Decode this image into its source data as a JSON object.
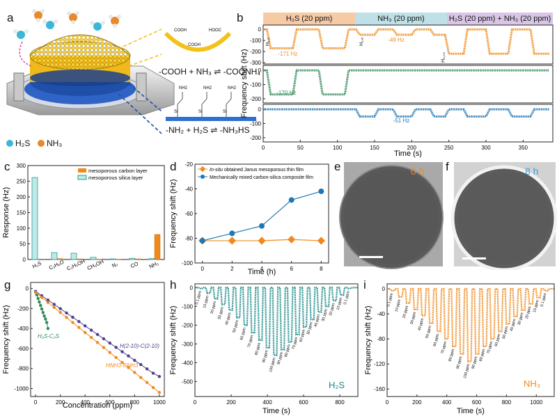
{
  "panels": {
    "a": {
      "label": "a",
      "eq1": "-COOH + NH₃ ⇌ -COONH₄",
      "eq2": "-NH₂ + H₂S ⇌ -NH₃HS",
      "legend_h2s": "H₂S",
      "legend_nh3": "NH₃",
      "cooh": "COOH",
      "hooc": "HOOC",
      "nh2": "NH₂",
      "si": "Si",
      "colors": {
        "h2s_ball": "#3cb7d6",
        "nh3_ball": "#e8892b",
        "film": "#f2c21b",
        "silica": "#1f4fa8"
      }
    },
    "b": {
      "label": "b",
      "headers": [
        "H₂S (20 ppm)",
        "NH₃ (20 ppm)",
        "H₂S (20 ppm) + NH₃ (20 ppm)"
      ],
      "header_colors": [
        "#f7caa6",
        "#bfe0e6",
        "#d9c6e6"
      ],
      "ylabel": "Frequency shift (Hz)",
      "xlabel": "Time (s)",
      "xticks": [
        "0",
        "50",
        "100",
        "150",
        "200",
        "250",
        "300",
        "350"
      ],
      "top_yticks": [
        "0",
        "-100",
        "-200",
        "-300"
      ],
      "mid_yticks": [
        "0",
        "-100",
        "-200"
      ],
      "bot_yticks": [
        "0",
        "-100",
        "-200"
      ],
      "ann_top": [
        "-171 Hz",
        "-49 Hz"
      ],
      "ann_mid": "-170 Hz",
      "ann_bot": "-51 Hz",
      "h_labels": [
        "H₁,₅",
        "H₁,₆",
        "H₂,₁₀"
      ],
      "colors": {
        "orange": "#ef8a1c",
        "green": "#2e8b57",
        "blue": "#1f77b4"
      }
    },
    "c": {
      "label": "c",
      "ylabel": "Response (Hz)",
      "legend": [
        "mesoporous carbon layer",
        "mesoporous silica layer"
      ],
      "yticks": [
        "0",
        "50",
        "100",
        "150",
        "200",
        "250",
        "300"
      ]
    },
    "d": {
      "label": "d",
      "ylabel": "Frequency shift (Hz)",
      "xlabel": "Time (h)",
      "legend": [
        "in-situ obtained Janus mesoporous thin film",
        "Mechanically mixed carbon-silica composite film"
      ],
      "legend_italic_prefix": "In-situ",
      "legend_rest": " obtained Janus mesoporous thin film",
      "yticks": [
        "-20",
        "-40",
        "-60",
        "-80",
        "-100"
      ],
      "xticks": [
        "0",
        "2",
        "4",
        "6",
        "8"
      ]
    },
    "e": {
      "label": "e",
      "text": "0 h",
      "text_color": "#ef8a1c"
    },
    "f": {
      "label": "f",
      "text": "8 h",
      "text_color": "#3aa0d8"
    },
    "g": {
      "label": "g",
      "ylabel": "Frequency shift (Hz)",
      "xlabel": "Concentration (ppm)",
      "yticks": [
        "0",
        "-200",
        "-400",
        "-600",
        "-800",
        "-1000"
      ],
      "xticks": [
        "0",
        "200",
        "400",
        "600",
        "800",
        "1000"
      ],
      "ann_h2s": "H₂S-C₂S",
      "ann_mix": "H(2-10)-C(2-10)",
      "ann_nh3": "HNH3-CNH3"
    },
    "h": {
      "label": "h",
      "ylabel": "Frequency shift (Hz)",
      "xlabel": "Time (s)",
      "yticks": [
        "0",
        "-100",
        "-200",
        "-300",
        "-400",
        "-500"
      ],
      "xticks": [
        "0",
        "200",
        "400",
        "600",
        "800"
      ],
      "gas": "H₂S",
      "conc_labels": [
        "0.1 ppm",
        "10 ppm",
        "20 ppm",
        "30 ppm",
        "40 ppm",
        "50 ppm",
        "60 ppm",
        "70 ppm",
        "80 ppm",
        "90 ppm",
        "100 ppm",
        "90 ppm",
        "80 ppm",
        "70 ppm",
        "60 ppm",
        "50 ppm",
        "40 ppm",
        "30 ppm",
        "20 ppm",
        "10 ppm",
        "0.1 ppm"
      ]
    },
    "i": {
      "label": "i",
      "ylabel": "Frequency shift (Hz)",
      "xlabel": "Time (s)",
      "yticks": [
        "0",
        "-40",
        "-80",
        "-120",
        "-160"
      ],
      "xticks": [
        "0",
        "200",
        "400",
        "600",
        "800",
        "1000"
      ],
      "gas": "NH₃",
      "conc_labels": [
        "0.1 ppm",
        "10 ppm",
        "20 ppm",
        "30 ppm",
        "40 ppm",
        "50 ppm",
        "60 ppm",
        "70 ppm",
        "80 ppm",
        "90 ppm",
        "100 ppm",
        "90 ppm",
        "80 ppm",
        "70 ppm",
        "60 ppm",
        "50 ppm",
        "40 ppm",
        "30 ppm",
        "20 ppm",
        "10 ppm",
        "0.1 ppm"
      ]
    }
  },
  "chart_data": [
    {
      "panel": "b",
      "type": "line",
      "xlabel": "Time (s)",
      "ylabel": "Frequency shift (Hz)",
      "xlim": [
        0,
        390
      ],
      "series": [
        {
          "name": "mesoporous carbon layer",
          "color": "#ef8a1c",
          "ylim": [
            -300,
            20
          ],
          "x": [
            0,
            5,
            10,
            40,
            45,
            75,
            80,
            110,
            115,
            125,
            130,
            150,
            155,
            175,
            180,
            200,
            205,
            225,
            230,
            245,
            250,
            270,
            275,
            300,
            305,
            330,
            335,
            360,
            365,
            385
          ],
          "y": [
            0,
            0,
            -171,
            -171,
            0,
            0,
            -171,
            -171,
            0,
            0,
            -49,
            -49,
            0,
            0,
            -49,
            -49,
            0,
            0,
            -49,
            -49,
            -220,
            -220,
            0,
            0,
            -220,
            -220,
            0,
            0,
            -220,
            -220
          ]
        },
        {
          "name": "mesoporous silica layer",
          "color": "#2e8b57",
          "ylim": [
            -220,
            20
          ],
          "x": [
            0,
            5,
            10,
            40,
            45,
            75,
            80,
            110,
            115,
            385
          ],
          "y": [
            0,
            0,
            -170,
            -170,
            0,
            0,
            -170,
            -170,
            0,
            0
          ]
        },
        {
          "name": "composite",
          "color": "#1f77b4",
          "ylim": [
            -220,
            20
          ],
          "x": [
            0,
            125,
            130,
            150,
            155,
            175,
            180,
            200,
            205,
            225,
            230,
            245,
            250,
            270,
            275,
            300,
            305,
            330,
            335,
            360,
            365,
            385
          ],
          "y": [
            0,
            0,
            -51,
            -51,
            0,
            0,
            -51,
            -51,
            0,
            0,
            -51,
            -51,
            0,
            0,
            -51,
            -51,
            0,
            0,
            -51,
            -51,
            0,
            0
          ]
        }
      ]
    },
    {
      "panel": "c",
      "type": "bar",
      "ylabel": "Response (Hz)",
      "ylim": [
        0,
        300
      ],
      "categories": [
        "H₂S",
        "C₃H₆O",
        "C₂H₅OH",
        "CH₃OH",
        "N₂",
        "CO",
        "NH₃"
      ],
      "series": [
        {
          "name": "mesoporous carbon layer",
          "color": "#ef8a1c",
          "values": [
            0,
            3,
            2,
            1,
            1,
            2,
            80
          ]
        },
        {
          "name": "mesoporous silica layer",
          "color": "#4fb3b3",
          "values": [
            262,
            22,
            20,
            7,
            2,
            4,
            3
          ]
        }
      ]
    },
    {
      "panel": "d",
      "type": "line",
      "xlabel": "Time (h)",
      "ylabel": "Frequency shift (Hz)",
      "ylim": [
        -100,
        -20
      ],
      "xlim": [
        -0.5,
        8.5
      ],
      "series": [
        {
          "name": "In-situ obtained Janus mesoporous thin film",
          "color": "#ef8a1c",
          "x": [
            0,
            2,
            4,
            6,
            8
          ],
          "y": [
            -82,
            -82,
            -82,
            -81,
            -82
          ]
        },
        {
          "name": "Mechanically mixed carbon-silica composite film",
          "color": "#1f77b4",
          "x": [
            0,
            2,
            4,
            6,
            8
          ],
          "y": [
            -82,
            -76,
            -70,
            -49,
            -42
          ]
        }
      ]
    },
    {
      "panel": "g",
      "type": "scatter",
      "xlabel": "Concentration (ppm)",
      "ylabel": "Frequency shift (Hz)",
      "xlim": [
        -40,
        1040
      ],
      "ylim": [
        -1080,
        60
      ],
      "series": [
        {
          "name": "H₂S-C₂S",
          "color": "#2e8b57",
          "x": [
            0,
            10,
            20,
            30,
            40,
            50,
            60,
            70,
            80,
            90,
            100
          ],
          "y": [
            -30,
            -65,
            -100,
            -135,
            -170,
            -205,
            -240,
            -275,
            -305,
            -340,
            -400
          ]
        },
        {
          "name": "H(2-10)-C(2-10)",
          "color": "#4b3f8f",
          "x": [
            0,
            50,
            100,
            150,
            200,
            250,
            300,
            350,
            400,
            450,
            500,
            550,
            600,
            650,
            700,
            750,
            800,
            850,
            900,
            950,
            1000
          ],
          "y": [
            -30,
            -73,
            -116,
            -159,
            -202,
            -245,
            -288,
            -331,
            -374,
            -417,
            -460,
            -503,
            -546,
            -589,
            -632,
            -675,
            -718,
            -761,
            -804,
            -847,
            -880
          ]
        },
        {
          "name": "HNH3-CNH3",
          "color": "#ef8a1c",
          "x": [
            0,
            50,
            100,
            150,
            200,
            250,
            300,
            350,
            400,
            450,
            500,
            550,
            600,
            650,
            700,
            750,
            800,
            850,
            900,
            950,
            1000
          ],
          "y": [
            -40,
            -90,
            -140,
            -190,
            -240,
            -290,
            -340,
            -390,
            -440,
            -490,
            -540,
            -590,
            -640,
            -690,
            -740,
            -790,
            -840,
            -890,
            -940,
            -990,
            -1040
          ]
        }
      ]
    },
    {
      "panel": "h",
      "type": "line",
      "xlabel": "Time (s)",
      "ylabel": "Frequency shift (Hz)",
      "xlim": [
        0,
        900
      ],
      "ylim": [
        -580,
        20
      ],
      "series": [
        {
          "name": "H₂S",
          "color": "#1a8a87",
          "depths": [
            5,
            30,
            60,
            90,
            120,
            160,
            200,
            240,
            280,
            320,
            360,
            330,
            290,
            250,
            210,
            170,
            130,
            100,
            70,
            40,
            5
          ]
        }
      ]
    },
    {
      "panel": "i",
      "type": "line",
      "xlabel": "Time (s)",
      "ylabel": "Frequency shift (Hz)",
      "xlim": [
        0,
        1120
      ],
      "ylim": [
        -172,
        8
      ],
      "series": [
        {
          "name": "NH₃",
          "color": "#ef8a1c",
          "depths": [
            3,
            13,
            23,
            33,
            43,
            55,
            68,
            80,
            92,
            104,
            116,
            104,
            92,
            80,
            68,
            56,
            44,
            34,
            24,
            14,
            3
          ]
        }
      ]
    }
  ]
}
